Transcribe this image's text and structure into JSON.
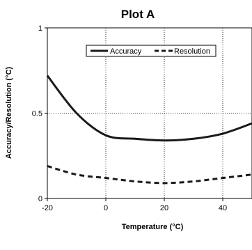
{
  "chart_data": {
    "type": "line",
    "title": "Plot A",
    "xlabel": "Temperature (°C)",
    "ylabel": "Accuracy/Resolution (°C)",
    "xlim": [
      -20,
      50
    ],
    "ylim": [
      0,
      1
    ],
    "xticks": [
      -20,
      0,
      20,
      40
    ],
    "xtick_labels": [
      "-20",
      "0",
      "20",
      "40"
    ],
    "yticks": [
      0,
      0.5,
      1
    ],
    "ytick_labels": [
      "0",
      "0.5",
      "1"
    ],
    "grid": "dotted, vertical at x ticks, horizontal at y=0.5",
    "legend_position": "top-right",
    "series": [
      {
        "name": "Accuracy",
        "style": "solid",
        "color": "#1a1a1a",
        "x": [
          -20,
          -10,
          0,
          10,
          20,
          30,
          40,
          50
        ],
        "y": [
          0.72,
          0.5,
          0.37,
          0.35,
          0.34,
          0.35,
          0.38,
          0.44
        ]
      },
      {
        "name": "Resolution",
        "style": "dashed",
        "color": "#1a1a1a",
        "x": [
          -20,
          -10,
          0,
          10,
          20,
          30,
          40,
          50
        ],
        "y": [
          0.19,
          0.14,
          0.12,
          0.1,
          0.09,
          0.1,
          0.12,
          0.14
        ]
      }
    ]
  }
}
